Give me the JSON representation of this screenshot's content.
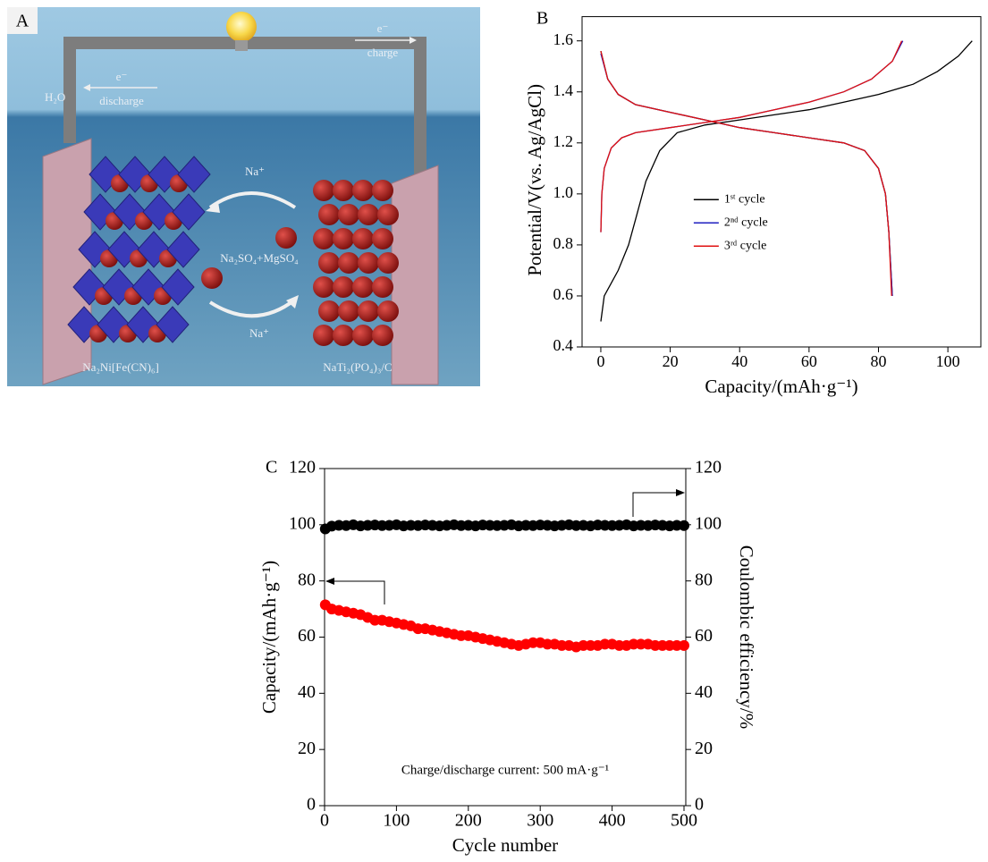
{
  "illustration": {
    "label": "A",
    "h2o": "H₂O",
    "electron_charge": "e⁻",
    "charge": "charge",
    "electron_discharge": "e⁻",
    "discharge": "discharge",
    "ion_top": "Na⁺",
    "electrolyte": "Na₂SO₄+MgSO₄",
    "ion_bottom": "Na⁺",
    "cathode": "Na₂Ni[Fe(CN)₆]",
    "anode": "NaTi₂(PO₄)₃/C"
  },
  "chart_data": [
    {
      "type": "line",
      "panel": "B",
      "xlabel": "Capacity/(mAh·g⁻¹)",
      "ylabel": "Potential/V(vs. Ag/AgCl)",
      "xlim": [
        -5.4,
        109.5
      ],
      "ylim": [
        0.4,
        1.695
      ],
      "xticks": [
        0,
        20,
        40,
        60,
        80,
        100
      ],
      "yticks": [
        0.4,
        0.6,
        0.8,
        {
          "value": 1.0,
          "label": "1.0"
        },
        1.2,
        1.4,
        1.6
      ],
      "legend": "center",
      "series": [
        {
          "name": "1ˢᵗ cycle",
          "color": "#000000",
          "x": [
            0,
            1,
            3,
            5,
            8,
            10,
            13,
            17,
            22,
            30,
            40,
            50,
            60,
            70,
            80,
            90,
            97,
            103,
            107,
            null,
            0,
            2,
            5,
            10,
            20,
            30,
            40,
            50,
            60,
            70,
            76,
            80,
            82,
            83,
            84
          ],
          "values": [
            0.5,
            0.6,
            0.65,
            0.7,
            0.8,
            0.9,
            1.05,
            1.17,
            1.24,
            1.27,
            1.29,
            1.31,
            1.33,
            1.36,
            1.39,
            1.43,
            1.48,
            1.54,
            1.6,
            null,
            1.56,
            1.45,
            1.39,
            1.35,
            1.32,
            1.29,
            1.26,
            1.24,
            1.22,
            1.2,
            1.17,
            1.1,
            1.0,
            0.85,
            0.6
          ]
        },
        {
          "name": "2ⁿᵈ cycle",
          "color": "#1f1fc0",
          "x": [
            0,
            0.3,
            1,
            3,
            6,
            10,
            20,
            30,
            40,
            50,
            60,
            70,
            78,
            84,
            87,
            null,
            0,
            2,
            5,
            10,
            20,
            30,
            40,
            50,
            60,
            70,
            76,
            80,
            82,
            83,
            84
          ],
          "values": [
            0.85,
            1.0,
            1.1,
            1.18,
            1.22,
            1.24,
            1.26,
            1.28,
            1.3,
            1.33,
            1.36,
            1.4,
            1.45,
            1.52,
            1.6,
            null,
            1.55,
            1.45,
            1.39,
            1.35,
            1.32,
            1.29,
            1.26,
            1.24,
            1.22,
            1.2,
            1.17,
            1.1,
            1.0,
            0.85,
            0.6
          ]
        },
        {
          "name": "3ʳᵈ cycle",
          "color": "#e01010",
          "x": [
            0,
            0.3,
            1,
            3,
            6,
            10,
            20,
            30,
            40,
            50,
            60,
            70,
            78,
            84,
            86.7,
            null,
            0,
            2,
            5,
            10,
            20,
            30,
            40,
            50,
            60,
            70,
            76,
            80,
            82,
            83,
            83.8
          ],
          "values": [
            0.85,
            1.0,
            1.1,
            1.18,
            1.22,
            1.24,
            1.26,
            1.28,
            1.3,
            1.33,
            1.36,
            1.4,
            1.45,
            1.52,
            1.6,
            null,
            1.56,
            1.45,
            1.39,
            1.35,
            1.32,
            1.29,
            1.26,
            1.24,
            1.22,
            1.2,
            1.17,
            1.1,
            1.0,
            0.85,
            0.6
          ]
        }
      ]
    },
    {
      "type": "scatter",
      "panel": "C",
      "xlabel": "Cycle number",
      "ylabel": "Capacity/(mAh·g⁻¹)",
      "y2label": "Coulombic efficiency/%",
      "annotation": "Charge/discharge current: 500 mA·g⁻¹",
      "xlim": [
        0,
        502.5
      ],
      "ylim": [
        0,
        120
      ],
      "y2lim": [
        0,
        120
      ],
      "xticks": [
        0,
        100,
        200,
        300,
        400,
        500
      ],
      "yticks": [
        0,
        20,
        40,
        60,
        80,
        100,
        120
      ],
      "y2ticks": [
        0,
        20,
        40,
        60,
        80,
        100,
        120
      ],
      "x": [
        1,
        10,
        20,
        30,
        40,
        50,
        60,
        70,
        80,
        90,
        100,
        110,
        120,
        130,
        140,
        150,
        160,
        170,
        180,
        190,
        200,
        210,
        220,
        230,
        240,
        250,
        260,
        270,
        280,
        290,
        300,
        310,
        320,
        330,
        340,
        350,
        360,
        370,
        380,
        390,
        400,
        410,
        420,
        430,
        440,
        450,
        460,
        470,
        480,
        490,
        500
      ],
      "series": [
        {
          "color": "#000000",
          "axis": "y2",
          "values": [
            98.5,
            99.5,
            99.8,
            99.7,
            100,
            99.6,
            99.8,
            99.9,
            99.7,
            99.8,
            100,
            99.6,
            99.8,
            99.7,
            99.9,
            99.8,
            99.6,
            99.8,
            100,
            99.7,
            99.8,
            99.6,
            99.9,
            99.8,
            99.7,
            99.8,
            100,
            99.6,
            99.8,
            99.7,
            99.9,
            99.8,
            99.6,
            99.8,
            100,
            99.7,
            99.8,
            99.6,
            99.9,
            99.8,
            99.7,
            99.8,
            100,
            99.6,
            99.8,
            99.7,
            99.9,
            99.8,
            99.6,
            99.8,
            99.7
          ]
        },
        {
          "color": "#ff0000",
          "values": [
            71.5,
            70,
            69.5,
            69,
            68.5,
            68,
            67,
            66,
            66,
            65.5,
            65,
            64.5,
            64,
            63,
            63,
            62.5,
            62,
            61.5,
            61,
            60.5,
            60.5,
            60,
            59.5,
            59,
            58.5,
            58,
            57.5,
            57,
            57.5,
            58,
            58,
            57.5,
            57.5,
            57,
            57,
            56.5,
            57,
            57,
            57,
            57.5,
            57.5,
            57,
            57,
            57.5,
            57.5,
            57.5,
            57,
            57,
            57,
            57,
            57
          ]
        }
      ]
    }
  ]
}
